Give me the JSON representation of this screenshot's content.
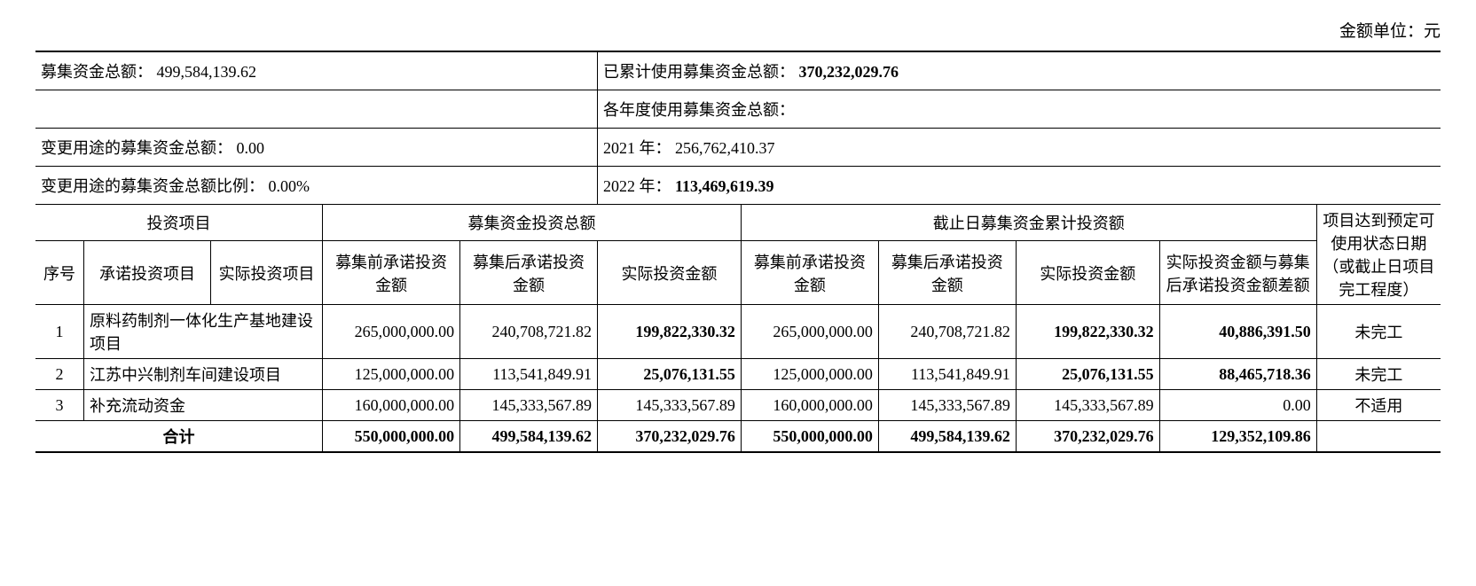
{
  "unit_label": "金额单位：元",
  "summary": {
    "total_raised_label": "募集资金总额：",
    "total_raised_value": "499,584,139.62",
    "used_cumulative_label": "已累计使用募集资金总额：",
    "used_cumulative_value": "370,232,029.76",
    "yearly_used_label": "各年度使用募集资金总额：",
    "changed_use_total_label": "变更用途的募集资金总额：",
    "changed_use_total_value": "0.00",
    "year_2021_label": "2021 年：",
    "year_2021_value": "256,762,410.37",
    "changed_use_ratio_label": "变更用途的募集资金总额比例：",
    "changed_use_ratio_value": "0.00%",
    "year_2022_label": "2022 年：",
    "year_2022_value": "113,469,619.39"
  },
  "headers": {
    "invest_project": "投资项目",
    "fund_invest_total": "募集资金投资总额",
    "cutoff_cumulative": "截止日募集资金累计投资额",
    "project_reach": "项目达到预定可使用状态日期（或截止日项目完工程度）",
    "seq": "序号",
    "committed_project": "承诺投资项目",
    "actual_project": "实际投资项目",
    "pre_commit_amount": "募集前承诺投资金额",
    "post_commit_amount": "募集后承诺投资金额",
    "actual_invest_amount": "实际投资金额",
    "actual_invest_amount2": "实际投资金额",
    "diff_amount": "实际投资金额与募集后承诺投资金额差额"
  },
  "rows": [
    {
      "seq": "1",
      "project": "原料药制剂一体化生产基地建设项目",
      "a_pre": "265,000,000.00",
      "a_post": "240,708,721.82",
      "a_actual": "199,822,330.32",
      "b_pre": "265,000,000.00",
      "b_post": "240,708,721.82",
      "b_actual": "199,822,330.32",
      "diff": "40,886,391.50",
      "status": "未完工",
      "bold_cells": [
        "a_actual",
        "b_actual",
        "diff"
      ]
    },
    {
      "seq": "2",
      "project": "江苏中兴制剂车间建设项目",
      "a_pre": "125,000,000.00",
      "a_post": "113,541,849.91",
      "a_actual": "25,076,131.55",
      "b_pre": "125,000,000.00",
      "b_post": "113,541,849.91",
      "b_actual": "25,076,131.55",
      "diff": "88,465,718.36",
      "status": "未完工",
      "bold_cells": [
        "a_actual",
        "b_actual",
        "diff"
      ]
    },
    {
      "seq": "3",
      "project": "补充流动资金",
      "a_pre": "160,000,000.00",
      "a_post": "145,333,567.89",
      "a_actual": "145,333,567.89",
      "b_pre": "160,000,000.00",
      "b_post": "145,333,567.89",
      "b_actual": "145,333,567.89",
      "diff": "0.00",
      "status": "不适用",
      "bold_cells": []
    }
  ],
  "total": {
    "label": "合计",
    "a_pre": "550,000,000.00",
    "a_post": "499,584,139.62",
    "a_actual": "370,232,029.76",
    "b_pre": "550,000,000.00",
    "b_post": "499,584,139.62",
    "b_actual": "370,232,029.76",
    "diff": "129,352,109.86",
    "status": ""
  }
}
